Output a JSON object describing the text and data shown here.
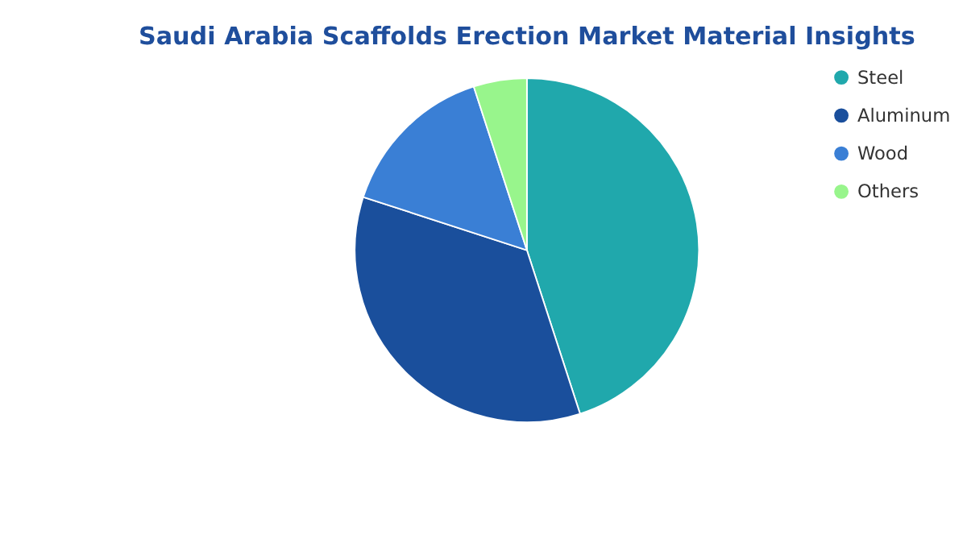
{
  "chart_data": {
    "type": "pie",
    "title": "Saudi Arabia Scaffolds Erection Market Material Insights",
    "categories": [
      "Steel",
      "Aluminum",
      "Wood",
      "Others"
    ],
    "values": [
      45,
      35,
      15,
      5
    ],
    "colors": [
      "#20a8ac",
      "#1a4f9c",
      "#3a7fd5",
      "#98f58c"
    ],
    "legend": "right"
  }
}
